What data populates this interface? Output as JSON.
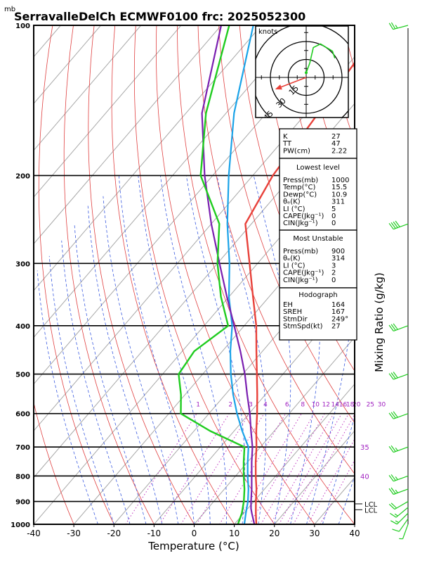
{
  "header": {
    "unit_mb": "mb",
    "title": "SerravalleDelCh  ECMWF0100  frc: 2025052300"
  },
  "chart_data": {
    "type": "skew-t",
    "xlabel": "Temperature (°C)",
    "ylabel_right": "Mixing Ratio (g/kg)",
    "x_ticks": [
      -40,
      -30,
      -20,
      -10,
      0,
      10,
      20,
      30,
      40
    ],
    "x_range": [
      -40,
      40
    ],
    "p_range": [
      1000,
      100
    ],
    "y_ticks": [
      100,
      200,
      300,
      400,
      500,
      600,
      700,
      800,
      900,
      1000
    ],
    "temperature_color": "#e8413a",
    "dewpoint_color": "#1fcc1f",
    "parcel_color": "#7a1fb0",
    "wetbulb_color": "#1aa3e8",
    "temperature": [
      {
        "p": 1000,
        "t": 15.5
      },
      {
        "p": 950,
        "t": 13.0
      },
      {
        "p": 900,
        "t": 10.5
      },
      {
        "p": 850,
        "t": 8.0
      },
      {
        "p": 800,
        "t": 5.0
      },
      {
        "p": 750,
        "t": 2.0
      },
      {
        "p": 700,
        "t": -1.0
      },
      {
        "p": 650,
        "t": -4.5
      },
      {
        "p": 600,
        "t": -8.0
      },
      {
        "p": 550,
        "t": -12.0
      },
      {
        "p": 500,
        "t": -16.5
      },
      {
        "p": 450,
        "t": -21.5
      },
      {
        "p": 400,
        "t": -27.0
      },
      {
        "p": 350,
        "t": -34.0
      },
      {
        "p": 300,
        "t": -42.0
      },
      {
        "p": 250,
        "t": -51.5
      },
      {
        "p": 200,
        "t": -55.0
      },
      {
        "p": 150,
        "t": -57.0
      },
      {
        "p": 100,
        "t": -60.0
      }
    ],
    "dewpoint": [
      {
        "p": 1000,
        "t": 10.9
      },
      {
        "p": 950,
        "t": 9.5
      },
      {
        "p": 900,
        "t": 7.5
      },
      {
        "p": 850,
        "t": 5.0
      },
      {
        "p": 800,
        "t": 2.0
      },
      {
        "p": 750,
        "t": -1.0
      },
      {
        "p": 700,
        "t": -4.0
      },
      {
        "p": 650,
        "t": -16.0
      },
      {
        "p": 600,
        "t": -27.0
      },
      {
        "p": 550,
        "t": -31.0
      },
      {
        "p": 500,
        "t": -36.0
      },
      {
        "p": 450,
        "t": -37.0
      },
      {
        "p": 400,
        "t": -34.0
      },
      {
        "p": 350,
        "t": -42.0
      },
      {
        "p": 300,
        "t": -50.0
      },
      {
        "p": 250,
        "t": -58.0
      },
      {
        "p": 200,
        "t": -73.0
      },
      {
        "p": 150,
        "t": -85.0
      },
      {
        "p": 100,
        "t": -98.0
      }
    ],
    "wetbulb": [
      {
        "p": 1000,
        "t": 12.5
      },
      {
        "p": 950,
        "t": 10.5
      },
      {
        "p": 900,
        "t": 8.5
      },
      {
        "p": 850,
        "t": 6.0
      },
      {
        "p": 800,
        "t": 3.0
      },
      {
        "p": 750,
        "t": 0.0
      },
      {
        "p": 700,
        "t": -3.0
      },
      {
        "p": 650,
        "t": -8.0
      },
      {
        "p": 600,
        "t": -13.0
      },
      {
        "p": 550,
        "t": -18.0
      },
      {
        "p": 500,
        "t": -23.0
      },
      {
        "p": 450,
        "t": -28.0
      },
      {
        "p": 400,
        "t": -33.0
      },
      {
        "p": 350,
        "t": -40.0
      },
      {
        "p": 300,
        "t": -47.0
      },
      {
        "p": 250,
        "t": -56.0
      },
      {
        "p": 200,
        "t": -66.0
      },
      {
        "p": 150,
        "t": -78.0
      },
      {
        "p": 100,
        "t": -92.0
      }
    ],
    "parcel": [
      {
        "p": 1000,
        "t": 15.0
      },
      {
        "p": 950,
        "t": 12.0
      },
      {
        "p": 930,
        "t": 10.8
      },
      {
        "p": 900,
        "t": 9.3
      },
      {
        "p": 850,
        "t": 6.8
      },
      {
        "p": 800,
        "t": 4.0
      },
      {
        "p": 750,
        "t": 1.0
      },
      {
        "p": 700,
        "t": -2.0
      },
      {
        "p": 650,
        "t": -5.8
      },
      {
        "p": 600,
        "t": -9.8
      },
      {
        "p": 550,
        "t": -14.5
      },
      {
        "p": 500,
        "t": -19.5
      },
      {
        "p": 450,
        "t": -25.5
      },
      {
        "p": 400,
        "t": -32.5
      },
      {
        "p": 350,
        "t": -40.5
      },
      {
        "p": 300,
        "t": -49.5
      },
      {
        "p": 250,
        "t": -60.0
      },
      {
        "p": 200,
        "t": -72.0
      },
      {
        "p": 150,
        "t": -86.0
      },
      {
        "p": 100,
        "t": -100.0
      }
    ],
    "mixing_ratio_labels": [
      "1",
      "2",
      "3",
      "4",
      "6",
      "8",
      "10",
      "12",
      "14",
      "16",
      "18",
      "20",
      "25",
      "30"
    ],
    "mixing_ratio_values": [
      1,
      2,
      3,
      4,
      6,
      8,
      10,
      12,
      14,
      16,
      18,
      20,
      25,
      30
    ],
    "theta_labels": [
      "35",
      "40"
    ],
    "lcl_labels": [
      {
        "p": 935,
        "text": "LCL"
      },
      {
        "p": 910,
        "text": "LCL"
      }
    ],
    "wind_barbs": [
      {
        "p": 1000,
        "dir": 200,
        "spd": 5
      },
      {
        "p": 975,
        "dir": 215,
        "spd": 10
      },
      {
        "p": 950,
        "dir": 225,
        "spd": 15
      },
      {
        "p": 925,
        "dir": 230,
        "spd": 15
      },
      {
        "p": 900,
        "dir": 240,
        "spd": 20
      },
      {
        "p": 850,
        "dir": 250,
        "spd": 25
      },
      {
        "p": 800,
        "dir": 250,
        "spd": 25
      },
      {
        "p": 700,
        "dir": 250,
        "spd": 25
      },
      {
        "p": 600,
        "dir": 250,
        "spd": 30
      },
      {
        "p": 500,
        "dir": 250,
        "spd": 30
      },
      {
        "p": 400,
        "dir": 250,
        "spd": 30
      },
      {
        "p": 250,
        "dir": 250,
        "spd": 40
      },
      {
        "p": 100,
        "dir": 255,
        "spd": 25
      }
    ]
  },
  "hodograph": {
    "title": "knots",
    "rings": [
      "15",
      "30",
      "45"
    ],
    "storm_vector": {
      "dir": 249,
      "spd": 27
    },
    "trace": [
      {
        "u": 0,
        "v": 4
      },
      {
        "u": 3,
        "v": 12
      },
      {
        "u": 6,
        "v": 25
      },
      {
        "u": 12,
        "v": 28
      },
      {
        "u": 22,
        "v": 22
      },
      {
        "u": 24,
        "v": 16
      }
    ]
  },
  "indices": {
    "general": [
      {
        "label": "K",
        "value": "27"
      },
      {
        "label": "TT",
        "value": "47"
      },
      {
        "label": "PW(cm)",
        "value": "2.22"
      }
    ],
    "lowest_title": "Lowest level",
    "lowest": [
      {
        "label": "Press(mb)",
        "value": "1000"
      },
      {
        "label": "Temp(°C)",
        "value": "15.5"
      },
      {
        "label": "Dewp(°C)",
        "value": "10.9"
      },
      {
        "label": "θₑ(K)",
        "value": "311"
      },
      {
        "label": "LI (°C)",
        "value": "5"
      },
      {
        "label": "CAPE(Jkg⁻¹)",
        "value": "0"
      },
      {
        "label": "CIN(Jkg⁻¹)",
        "value": "0"
      }
    ],
    "unstable_title": "Most Unstable",
    "unstable": [
      {
        "label": "Press(mb)",
        "value": "900"
      },
      {
        "label": "θₑ(K)",
        "value": "314"
      },
      {
        "label": "LI (°C)",
        "value": "3"
      },
      {
        "label": "CAPE(Jkg⁻¹)",
        "value": "2"
      },
      {
        "label": "CIN(Jkg⁻¹)",
        "value": "0"
      }
    ],
    "hodo_title": "Hodograph",
    "hodo": [
      {
        "label": "EH",
        "value": "164"
      },
      {
        "label": "SREH",
        "value": "167"
      },
      {
        "label": "StmDir",
        "value": "249°"
      },
      {
        "label": "StmSpd(kt)",
        "value": "27"
      }
    ]
  }
}
